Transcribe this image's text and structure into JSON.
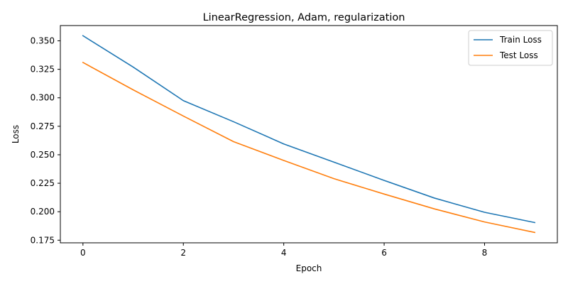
{
  "chart_data": {
    "type": "line",
    "title": "LinearRegression, Adam, regularization",
    "xlabel": "Epoch",
    "ylabel": "Loss",
    "x": [
      0,
      1,
      2,
      3,
      4,
      5,
      6,
      7,
      8,
      9
    ],
    "xlim": [
      -0.45,
      9.45
    ],
    "ylim": [
      0.1727,
      0.3634
    ],
    "x_ticks": [
      0,
      2,
      4,
      6,
      8
    ],
    "y_ticks": [
      0.175,
      0.2,
      0.225,
      0.25,
      0.275,
      0.3,
      0.325,
      0.35
    ],
    "grid": false,
    "legend_position": "top-right",
    "series": [
      {
        "name": "Train Loss",
        "color": "#1f77b4",
        "values": [
          0.3545,
          0.327,
          0.2975,
          0.279,
          0.2595,
          0.2435,
          0.2275,
          0.212,
          0.1995,
          0.1905
        ]
      },
      {
        "name": "Test Loss",
        "color": "#ff7f0e",
        "values": [
          0.331,
          0.307,
          0.284,
          0.2615,
          0.245,
          0.229,
          0.2155,
          0.2025,
          0.191,
          0.1818
        ]
      }
    ]
  }
}
